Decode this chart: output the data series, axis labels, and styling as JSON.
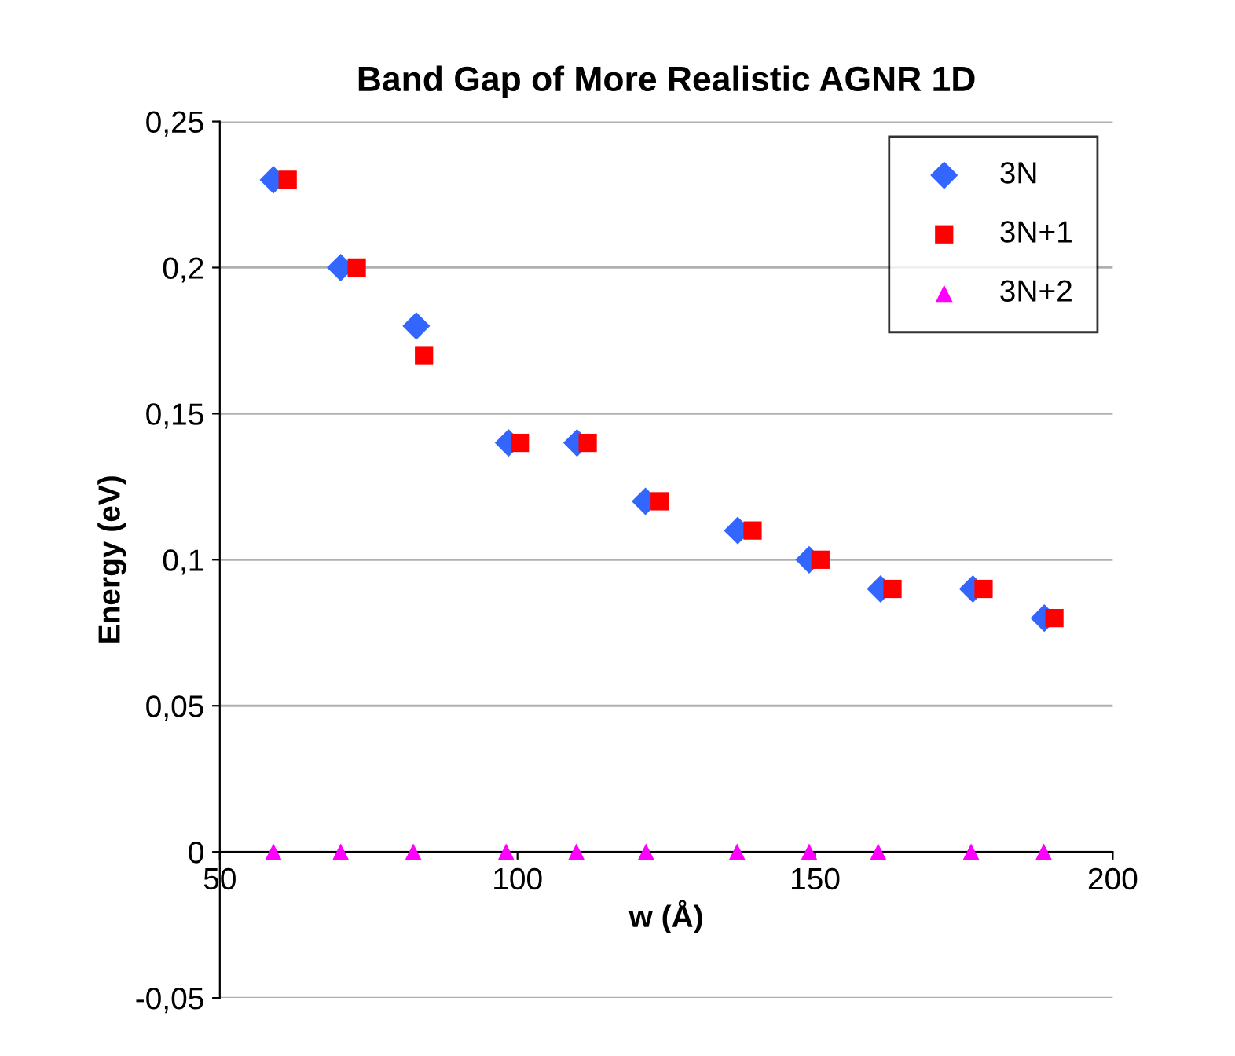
{
  "chart_data": {
    "type": "scatter",
    "title": "Band Gap of More Realistic AGNR 1D",
    "xlabel": "w (Å)",
    "ylabel": "Energy (eV)",
    "xlim": [
      50,
      200
    ],
    "xticks": [
      50,
      100,
      150,
      200
    ],
    "ylim": [
      -0.05,
      0.25
    ],
    "yticks": [
      {
        "value": -0.05,
        "label": "-0,05"
      },
      {
        "value": 0,
        "label": "0"
      },
      {
        "value": 0.05,
        "label": "0,05"
      },
      {
        "value": 0.1,
        "label": "0,1"
      },
      {
        "value": 0.15,
        "label": "0,15"
      },
      {
        "value": 0.2,
        "label": "0,2"
      },
      {
        "value": 0.25,
        "label": "0,25"
      }
    ],
    "grid": "y",
    "legend": "top right",
    "series": [
      {
        "name": "3N",
        "color": "#3366ff",
        "marker": "diamond",
        "x": [
          59,
          70.3,
          83,
          98.5,
          110,
          121.5,
          137,
          149,
          161,
          176.5,
          188.5
        ],
        "values": [
          0.23,
          0.2,
          0.18,
          0.14,
          0.14,
          0.12,
          0.11,
          0.1,
          0.09,
          0.09,
          0.08
        ]
      },
      {
        "name": "3N+1",
        "color": "#ff0000",
        "marker": "square",
        "x": [
          61.4,
          73,
          84.3,
          100.4,
          111.8,
          123.9,
          139.5,
          150.9,
          163,
          178.3,
          190.2
        ],
        "values": [
          0.23,
          0.2,
          0.17,
          0.14,
          0.14,
          0.12,
          0.11,
          0.1,
          0.09,
          0.09,
          0.08
        ]
      },
      {
        "name": "3N+2",
        "color": "#ff00ff",
        "marker": "triangle",
        "x": [
          59,
          70.3,
          82.5,
          98.1,
          109.9,
          121.6,
          136.9,
          149,
          160.6,
          176.2,
          188.4
        ],
        "values": [
          0,
          0,
          0,
          0,
          0,
          0,
          0,
          0,
          0,
          0,
          0
        ]
      }
    ]
  }
}
